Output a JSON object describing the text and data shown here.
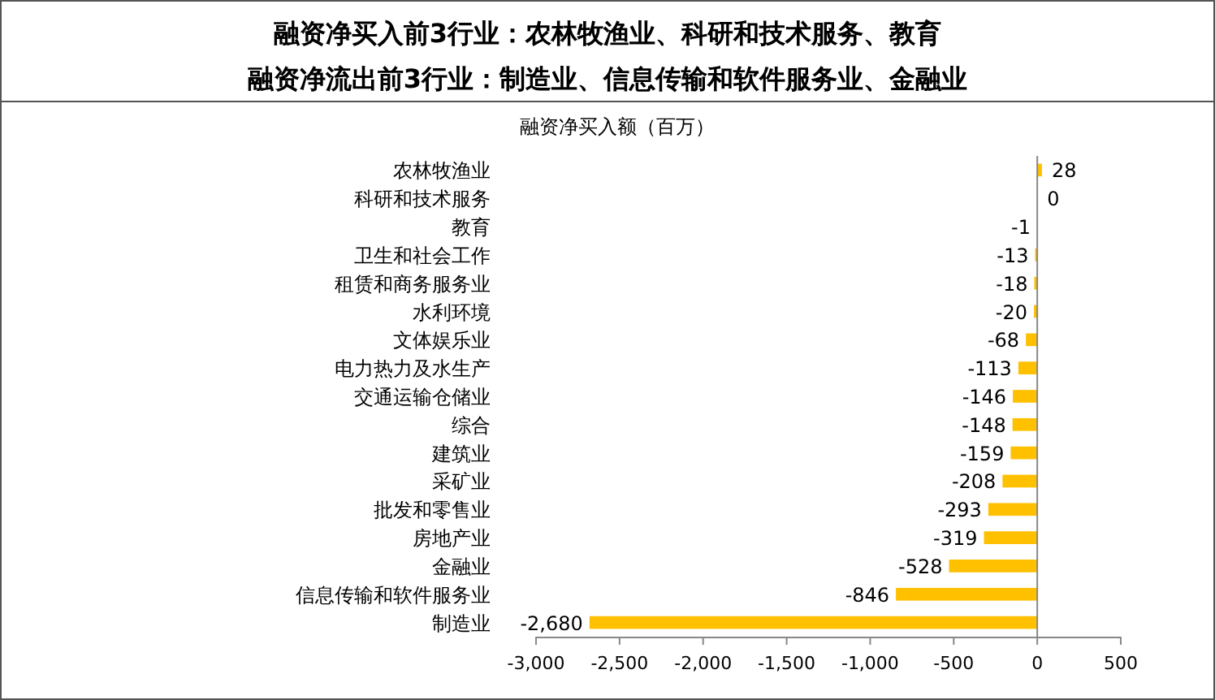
{
  "chart_data": {
    "type": "bar",
    "orientation": "horizontal",
    "title": "融资净买入前3行业：农林牧渔业、科研和技术服务、教育",
    "subtitle": "融资净流出前3行业：制造业、信息传输和软件服务业、金融业",
    "annotations": [
      "融资净买入额（百万）"
    ],
    "categories": [
      "农林牧渔业",
      "科研和技术服务",
      "教育",
      "卫生和社会工作",
      "租赁和商务服务业",
      "水利环境",
      "文体娱乐业",
      "电力热力及水生产",
      "交通运输仓储业",
      "综合",
      "建筑业",
      "采矿业",
      "批发和零售业",
      "房地产业",
      "金融业",
      "信息传输和软件服务业",
      "制造业"
    ],
    "values": [
      28,
      0,
      -1,
      -13,
      -18,
      -20,
      -68,
      -113,
      -146,
      -148,
      -159,
      -208,
      -293,
      -319,
      -528,
      -846,
      -2680
    ],
    "value_labels": [
      "28",
      "0",
      "-1",
      "-13",
      "-18",
      "-20",
      "-68",
      "-113",
      "-146",
      "-148",
      "-159",
      "-208",
      "-293",
      "-319",
      "-528",
      "-846",
      "-2,680"
    ],
    "color": "#ffc000",
    "xlim": [
      -3000,
      500
    ],
    "xticks": [
      {
        "value": -3000,
        "label": "-3,000"
      },
      {
        "value": -2500,
        "label": "-2,500"
      },
      {
        "value": -2000,
        "label": "-2,000"
      },
      {
        "value": -1500,
        "label": "-1,500"
      },
      {
        "value": -1000,
        "label": "-1,000"
      },
      {
        "value": -500,
        "label": "-500"
      },
      0,
      500
    ]
  }
}
